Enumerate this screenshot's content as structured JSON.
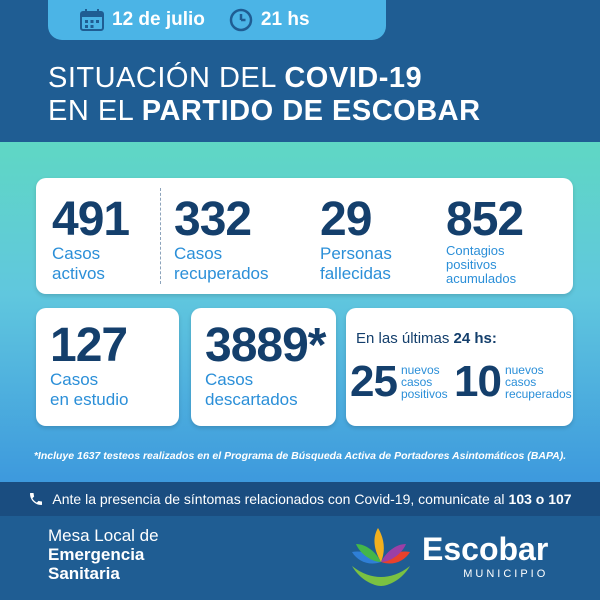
{
  "header": {
    "date": "12 de julio",
    "time": "21 hs",
    "title_line1_plain": "SITUACIÓN DEL ",
    "title_line1_bold": "COVID-19",
    "title_line2_plain": "EN EL ",
    "title_line2_bold": "PARTIDO DE ESCOBAR"
  },
  "stats": {
    "active": {
      "value": "491",
      "label1": "Casos",
      "label2": "activos"
    },
    "recovered": {
      "value": "332",
      "label1": "Casos",
      "label2": "recuperados"
    },
    "deceased": {
      "value": "29",
      "label1": "Personas",
      "label2": "fallecidas"
    },
    "accumulated": {
      "value": "852",
      "label1": "Contagios",
      "label2": "positivos",
      "label3": "acumulados"
    },
    "study": {
      "value": "127",
      "label1": "Casos",
      "label2": "en estudio"
    },
    "discarded": {
      "value": "3889*",
      "label1": "Casos",
      "label2": "descartados"
    }
  },
  "last24": {
    "intro": "En las últimas ",
    "intro_bold": "24 hs:",
    "new_positive": {
      "value": "25",
      "l1": "nuevos",
      "l2": "casos",
      "l3": "positivos"
    },
    "new_recovered": {
      "value": "10",
      "l1": "nuevos",
      "l2": "casos",
      "l3": "recuperados"
    }
  },
  "footnote": "*Incluye 1637 testeos realizados en el Programa de Búsqueda Activa de Portadores Asintomáticos (BAPA).",
  "contact": {
    "text": "Ante la presencia de síntomas relacionados con Covid-19, comunicate al",
    "numbers": "103 o 107"
  },
  "footer": {
    "mesa_l1": "Mesa Local de",
    "mesa_l2": "Emergencia",
    "mesa_l3": "Sanitaria",
    "brand": "Escobar",
    "brand_sub": "MUNICIPIO"
  },
  "colors": {
    "navy": "#1f5d93",
    "accent": "#4bb4e6",
    "number": "#143f6c",
    "label": "#2b8fd8"
  }
}
